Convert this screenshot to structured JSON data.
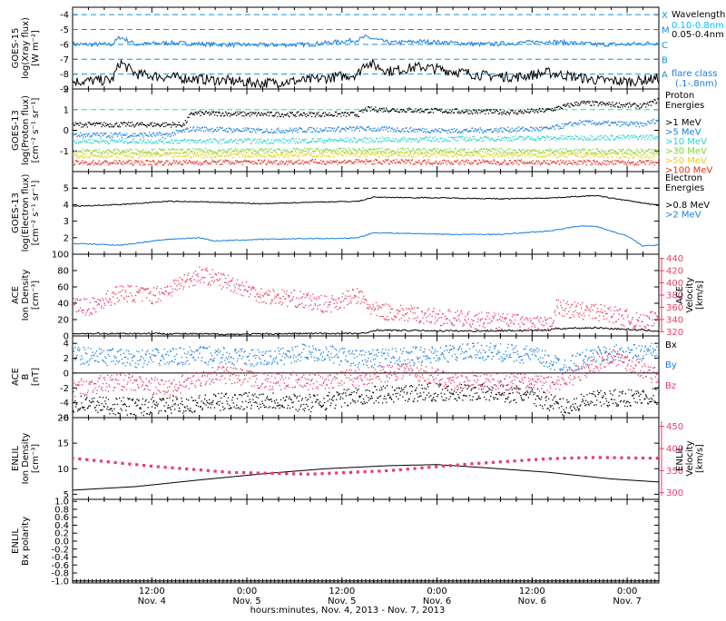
{
  "colors": {
    "black": "#000000",
    "blue": "#1a7de0",
    "lightblue": "#00bfff",
    "cyan": "#29d3d3",
    "lime": "#7fd23a",
    "yellow": "#e6d21c",
    "orange": "#ff8c00",
    "red": "#e0301e",
    "pink": "#e83e67"
  },
  "footer": {
    "xlabel": "hours:minutes, Nov.  4, 2013 - Nov.  7, 2013"
  },
  "chart_data": [
    {
      "type": "line",
      "id": "goes15-xray",
      "ylabel_lines": [
        "GOES-15",
        "log(Xray flux)",
        "[W m⁻²]"
      ],
      "ylim": [
        -9,
        -3.5
      ],
      "yticks": [
        -9,
        -8,
        -7,
        -6,
        -5,
        -4
      ],
      "x_range_hours": [
        0,
        74
      ],
      "flare_class_levels": [
        {
          "class": "X",
          "log_flux": -4
        },
        {
          "class": "M",
          "log_flux": -5
        },
        {
          "class": "C",
          "log_flux": -6
        },
        {
          "class": "B",
          "log_flux": -7
        },
        {
          "class": "A",
          "log_flux": -8
        }
      ],
      "legend": {
        "title": "Wavelength",
        "entries": [
          {
            "label": "0.10-0.8nm",
            "color": "blue"
          },
          {
            "label": "0.05-0.4nm",
            "color": "black"
          }
        ],
        "note_lines": [
          "flare class",
          "(.1-.8nm)"
        ]
      },
      "series": [
        {
          "name": "0.10-0.8nm",
          "color": "blue",
          "x": [
            0,
            5,
            6,
            8,
            12,
            18,
            24,
            30,
            36,
            37,
            40,
            44,
            48,
            52,
            56,
            60,
            66,
            70,
            74
          ],
          "values": [
            -6.0,
            -6.0,
            -5.5,
            -6.0,
            -5.9,
            -6.0,
            -6.05,
            -6.0,
            -5.7,
            -5.5,
            -5.9,
            -5.8,
            -5.9,
            -6.0,
            -5.9,
            -5.8,
            -6.0,
            -6.0,
            -5.9
          ]
        },
        {
          "name": "0.05-0.4nm",
          "color": "black",
          "x": [
            0,
            5,
            6,
            8,
            12,
            18,
            24,
            30,
            36,
            37,
            40,
            44,
            48,
            52,
            56,
            60,
            66,
            70,
            74
          ],
          "values": [
            -8.5,
            -8.4,
            -7.2,
            -8.0,
            -8.2,
            -8.4,
            -8.6,
            -8.4,
            -8.0,
            -7.2,
            -7.8,
            -7.5,
            -7.8,
            -8.1,
            -8.2,
            -7.9,
            -8.4,
            -8.5,
            -8.3
          ]
        }
      ]
    },
    {
      "type": "scatter",
      "id": "goes13-proton",
      "ylabel_lines": [
        "GOES-13",
        "log(Proton flux)",
        "[cm⁻² s⁻¹ sr⁻¹]"
      ],
      "ylim": [
        -2,
        2
      ],
      "yticks": [
        -1,
        0,
        1,
        2
      ],
      "threshold": 1,
      "legend": {
        "title_lines": [
          "Proton",
          "Energies"
        ],
        "entries": [
          {
            "label": ">1 MeV",
            "color": "black"
          },
          {
            "label": ">5 MeV",
            "color": "blue"
          },
          {
            "label": ">10 MeV",
            "color": "cyan"
          },
          {
            "label": ">30 MeV",
            "color": "lime"
          },
          {
            "label": ">50 MeV",
            "color": "yellow"
          },
          {
            "label": ">100 MeV",
            "color": "red"
          }
        ]
      },
      "series": [
        {
          "name": ">1 MeV",
          "color": "black",
          "x": [
            0,
            12,
            14,
            15,
            24,
            36,
            37,
            48,
            56,
            60,
            64,
            72,
            74
          ],
          "values": [
            0.3,
            0.3,
            0.3,
            0.85,
            0.8,
            0.8,
            1.05,
            0.95,
            0.9,
            1.0,
            1.35,
            1.2,
            1.5
          ]
        },
        {
          "name": ">5 MeV",
          "color": "blue",
          "x": [
            0,
            12,
            15,
            24,
            36,
            48,
            60,
            64,
            72,
            74
          ],
          "values": [
            -0.2,
            -0.2,
            0.1,
            0.0,
            0.1,
            0.0,
            0.1,
            0.4,
            0.3,
            0.55
          ]
        },
        {
          "name": ">10 MeV",
          "color": "cyan",
          "x": [
            0,
            24,
            48,
            74
          ],
          "values": [
            -0.5,
            -0.5,
            -0.4,
            -0.3
          ]
        },
        {
          "name": ">30 MeV",
          "color": "lime",
          "x": [
            0,
            37,
            74
          ],
          "values": [
            -1.0,
            -0.95,
            -1.0
          ]
        },
        {
          "name": ">50 MeV",
          "color": "yellow",
          "x": [
            0,
            37,
            74
          ],
          "values": [
            -1.2,
            -1.15,
            -1.2
          ]
        },
        {
          "name": ">100 MeV",
          "color": "red",
          "x": [
            0,
            37,
            74
          ],
          "values": [
            -1.55,
            -1.5,
            -1.55
          ]
        }
      ]
    },
    {
      "type": "line",
      "id": "goes13-electron",
      "ylabel_lines": [
        "GOES-13",
        "log(Electron flux)",
        "[cm⁻² s⁻¹ sr⁻¹]"
      ],
      "ylim": [
        1,
        6
      ],
      "yticks": [
        2,
        3,
        4,
        5
      ],
      "threshold": 5,
      "legend": {
        "title_lines": [
          "Electron",
          "Energies"
        ],
        "entries": [
          {
            "label": ">0.8 MeV",
            "color": "black"
          },
          {
            "label": ">2 MeV",
            "color": "blue"
          }
        ]
      },
      "series": [
        {
          "name": ">0.8 MeV",
          "color": "black",
          "x": [
            0,
            6,
            12,
            18,
            24,
            30,
            36,
            38,
            48,
            54,
            60,
            66,
            72,
            74
          ],
          "values": [
            3.9,
            4.0,
            4.2,
            4.15,
            4.05,
            4.15,
            4.2,
            4.45,
            4.4,
            4.35,
            4.4,
            4.55,
            4.1,
            3.95
          ]
        },
        {
          "name": ">2 MeV",
          "color": "blue",
          "x": [
            0,
            6,
            12,
            16,
            18,
            24,
            30,
            34,
            36,
            38,
            48,
            54,
            60,
            64,
            66,
            70,
            72,
            74
          ],
          "values": [
            1.65,
            1.55,
            1.9,
            2.0,
            1.8,
            1.9,
            1.95,
            1.95,
            2.0,
            2.3,
            2.2,
            2.2,
            2.4,
            2.7,
            2.7,
            2.1,
            1.5,
            1.55
          ]
        }
      ]
    },
    {
      "type": "scatter",
      "id": "ace-plasma",
      "ylabel_lines": [
        "ACE",
        "Ion Density",
        "[cm⁻³]"
      ],
      "ylim": [
        0,
        100
      ],
      "yticks": [
        0,
        20,
        40,
        60,
        80,
        100
      ],
      "right_axis": {
        "label_lines": [
          "ACE",
          "Velocity",
          "[km/s]"
        ],
        "ylim": [
          313,
          447
        ],
        "yticks": [
          320,
          340,
          360,
          380,
          400,
          420,
          440
        ],
        "color": "pink"
      },
      "series": [
        {
          "name": "Ion Density",
          "color": "black",
          "x": [
            0,
            10,
            20,
            30,
            37,
            38,
            50,
            60,
            61,
            66,
            70,
            74
          ],
          "values": [
            3,
            3,
            2,
            3,
            3,
            7,
            6,
            7,
            9,
            10,
            8,
            6
          ]
        },
        {
          "name": "Velocity",
          "color": "pink",
          "axis": "right",
          "x": [
            0,
            2,
            6,
            10,
            12,
            16,
            20,
            24,
            28,
            32,
            36,
            38,
            44,
            50,
            56,
            60,
            61,
            64,
            68,
            72,
            74
          ],
          "values": [
            365,
            360,
            385,
            380,
            390,
            415,
            400,
            380,
            375,
            365,
            380,
            355,
            348,
            340,
            336,
            330,
            360,
            355,
            350,
            335,
            345
          ]
        }
      ]
    },
    {
      "type": "scatter",
      "id": "ace-mag",
      "ylabel_lines": [
        "ACE",
        "B",
        "[nT]"
      ],
      "ylim": [
        -6,
        5
      ],
      "yticks": [
        -6,
        -4,
        -2,
        0,
        2,
        4
      ],
      "legend": {
        "entries": [
          {
            "label": "Bx",
            "color": "black"
          },
          {
            "label": "By",
            "color": "blue"
          },
          {
            "label": "Bz",
            "color": "pink"
          }
        ]
      },
      "series": [
        {
          "name": "Bx",
          "color": "black",
          "x": [
            0,
            8,
            16,
            24,
            30,
            36,
            44,
            52,
            58,
            62,
            66,
            74
          ],
          "values": [
            -4.0,
            -4.5,
            -4.0,
            -3.5,
            -4.0,
            -3.0,
            -2.5,
            -2.5,
            -3.0,
            -4.5,
            -3.5,
            -3.0
          ]
        },
        {
          "name": "By",
          "color": "blue",
          "x": [
            0,
            8,
            16,
            24,
            30,
            36,
            44,
            52,
            58,
            62,
            66,
            74
          ],
          "values": [
            2.5,
            2.0,
            2.5,
            2.0,
            3.0,
            2.0,
            2.5,
            3.0,
            2.5,
            1.0,
            2.5,
            3.0
          ]
        },
        {
          "name": "Bz",
          "color": "pink",
          "x": [
            0,
            6,
            12,
            18,
            24,
            30,
            36,
            42,
            48,
            54,
            60,
            64,
            68,
            74
          ],
          "values": [
            -2.0,
            -1.0,
            -2.0,
            0.0,
            -1.0,
            -1.0,
            -0.5,
            0.5,
            -1.0,
            -1.0,
            -1.5,
            0.0,
            2.5,
            -0.5
          ]
        }
      ]
    },
    {
      "type": "line",
      "id": "enlil-plasma",
      "ylabel_lines": [
        "ENLIL",
        "Ion Density",
        "[cm⁻³]"
      ],
      "ylim": [
        4,
        20
      ],
      "yticks": [
        5,
        10,
        15,
        20
      ],
      "right_axis": {
        "label_lines": [
          "ENLIL",
          "Velocity",
          "[km/s]"
        ],
        "ylim": [
          285,
          470
        ],
        "yticks": [
          300,
          350,
          400,
          450
        ],
        "color": "pink"
      },
      "series": [
        {
          "name": "Ion Density",
          "color": "black",
          "x": [
            0,
            8,
            16,
            24,
            32,
            40,
            46,
            52,
            60,
            68,
            74
          ],
          "values": [
            5.8,
            6.5,
            7.8,
            9.0,
            10.0,
            10.6,
            10.8,
            10.2,
            9.3,
            8.0,
            7.4
          ]
        },
        {
          "name": "Velocity",
          "color": "pink",
          "axis": "right",
          "x": [
            0,
            10,
            20,
            30,
            40,
            50,
            60,
            66,
            74
          ],
          "values": [
            378,
            360,
            346,
            342,
            350,
            365,
            377,
            380,
            378
          ]
        }
      ]
    },
    {
      "type": "line",
      "id": "enlil-polarity",
      "ylabel_lines": [
        "ENLIL",
        "Bx polarity"
      ],
      "ylim": [
        -1.05,
        1.05
      ],
      "yticks": [
        -1.0,
        -0.8,
        -0.6,
        -0.4,
        -0.2,
        0.0,
        0.2,
        0.4,
        0.6,
        0.8,
        1.0
      ],
      "series": [
        {
          "name": "Bx polarity",
          "color": "black",
          "x": [
            0,
            74
          ],
          "values": [
            -1.0,
            -1.0
          ]
        }
      ]
    }
  ],
  "xaxis": {
    "range_hours": [
      0,
      74
    ],
    "major_ticks": [
      {
        "hours": 10,
        "line1": "12:00",
        "line2": "Nov. 4"
      },
      {
        "hours": 22,
        "line1": "0:00",
        "line2": "Nov. 5"
      },
      {
        "hours": 34,
        "line1": "12:00",
        "line2": "Nov. 5"
      },
      {
        "hours": 46,
        "line1": "0:00",
        "line2": "Nov. 6"
      },
      {
        "hours": 58,
        "line1": "12:00",
        "line2": "Nov. 6"
      },
      {
        "hours": 70,
        "line1": "0:00",
        "line2": "Nov. 7"
      }
    ]
  }
}
